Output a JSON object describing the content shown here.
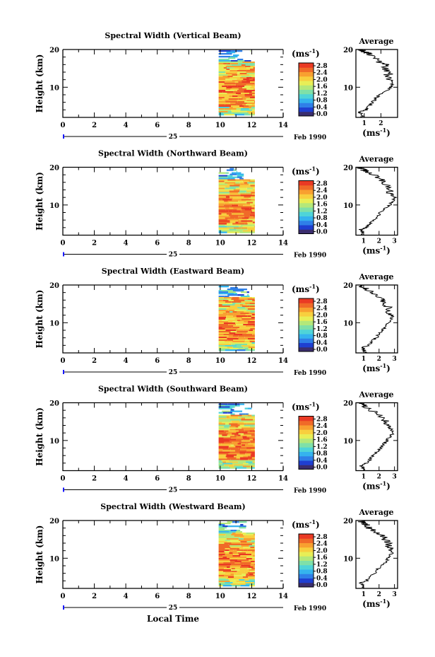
{
  "figure": {
    "xlabel": "Local Time",
    "date_day": "25",
    "date_month": "Feb 1990",
    "unit": "(ms",
    "unit_exp": "-1",
    "unit_close": ")",
    "avg_title": "Average",
    "ylabel": "Height (km)",
    "colors": {
      "scale": [
        "#3a2d6e",
        "#1f3fd1",
        "#2f7fe8",
        "#35b3ee",
        "#4fd4d8",
        "#7fe0a8",
        "#b4e87a",
        "#e8ee56",
        "#f8cf3e",
        "#f8a030",
        "#f06a28",
        "#ea3a24"
      ]
    }
  },
  "chart_data": [
    {
      "type": "heatmap",
      "title": "Spectral Width (Vertical Beam)",
      "xlim": [
        0,
        14
      ],
      "xticks": [
        "0",
        "2",
        "4",
        "6",
        "8",
        "10",
        "12",
        "14"
      ],
      "ylim": [
        2,
        20
      ],
      "yticks": [
        "10",
        "20"
      ],
      "data_x_range": [
        9.9,
        12.2
      ],
      "colorbar_ticks": [
        "0.0",
        "0.4",
        "0.8",
        "1.2",
        "1.6",
        "2.0",
        "2.4",
        "2.8"
      ],
      "average": {
        "xticks": [
          "1",
          "2"
        ],
        "xlim": [
          0.5,
          3.0
        ],
        "profile": [
          [
            2,
            0.9
          ],
          [
            3,
            0.8
          ],
          [
            3.5,
            0.7
          ],
          [
            4,
            1.1
          ],
          [
            5,
            1.3
          ],
          [
            6,
            1.5
          ],
          [
            7,
            1.7
          ],
          [
            8,
            1.9
          ],
          [
            9,
            2.3
          ],
          [
            10,
            2.6
          ],
          [
            11,
            2.7
          ],
          [
            12,
            2.6
          ],
          [
            13,
            2.4
          ],
          [
            14,
            2.5
          ],
          [
            15,
            2.2
          ],
          [
            16,
            2.3
          ],
          [
            17,
            1.8
          ],
          [
            18,
            1.6
          ],
          [
            19,
            1.3
          ],
          [
            19.5,
            1.0
          ],
          [
            20,
            0.8
          ]
        ]
      }
    },
    {
      "type": "heatmap",
      "title": "Spectral Width (Northward Beam)",
      "xlim": [
        0,
        14
      ],
      "xticks": [
        "0",
        "2",
        "4",
        "6",
        "8",
        "10",
        "12",
        "14"
      ],
      "ylim": [
        2,
        20
      ],
      "yticks": [
        "10",
        "20"
      ],
      "data_x_range": [
        9.9,
        12.2
      ],
      "colorbar_ticks": [
        "0.0",
        "0.4",
        "0.8",
        "1.2",
        "1.6",
        "2.0",
        "2.4",
        "2.8"
      ],
      "average": {
        "xticks": [
          "1",
          "2",
          "3"
        ],
        "xlim": [
          0.5,
          3.2
        ],
        "profile": [
          [
            2,
            1.0
          ],
          [
            3,
            0.9
          ],
          [
            3.5,
            0.8
          ],
          [
            4,
            1.2
          ],
          [
            5,
            1.4
          ],
          [
            6,
            1.7
          ],
          [
            7,
            1.9
          ],
          [
            8,
            2.1
          ],
          [
            9,
            2.4
          ],
          [
            10,
            2.7
          ],
          [
            11,
            2.9
          ],
          [
            12,
            3.0
          ],
          [
            13,
            2.6
          ],
          [
            14,
            2.8
          ],
          [
            15,
            2.5
          ],
          [
            16,
            2.4
          ],
          [
            17,
            2.0
          ],
          [
            18,
            1.6
          ],
          [
            19,
            1.2
          ],
          [
            19.5,
            0.9
          ],
          [
            20,
            0.7
          ]
        ]
      }
    },
    {
      "type": "heatmap",
      "title": "Spectral Width (Eastward Beam)",
      "xlim": [
        0,
        14
      ],
      "xticks": [
        "0",
        "2",
        "4",
        "6",
        "8",
        "10",
        "12",
        "14"
      ],
      "ylim": [
        2,
        20
      ],
      "yticks": [
        "10",
        "20"
      ],
      "data_x_range": [
        9.9,
        12.2
      ],
      "colorbar_ticks": [
        "0.0",
        "0.4",
        "0.8",
        "1.2",
        "1.6",
        "2.0",
        "2.4",
        "2.8"
      ],
      "average": {
        "xticks": [
          "1",
          "2",
          "3"
        ],
        "xlim": [
          0.5,
          3.2
        ],
        "profile": [
          [
            2,
            1.1
          ],
          [
            3,
            1.0
          ],
          [
            3.5,
            0.9
          ],
          [
            4,
            1.3
          ],
          [
            5,
            1.5
          ],
          [
            6,
            1.8
          ],
          [
            7,
            2.0
          ],
          [
            8,
            2.2
          ],
          [
            9,
            2.4
          ],
          [
            10,
            2.6
          ],
          [
            11,
            2.8
          ],
          [
            12,
            2.9
          ],
          [
            13,
            2.5
          ],
          [
            14,
            2.7
          ],
          [
            15,
            2.3
          ],
          [
            16,
            2.2
          ],
          [
            17,
            1.8
          ],
          [
            18,
            1.5
          ],
          [
            19,
            1.2
          ],
          [
            19.5,
            0.9
          ],
          [
            20,
            0.8
          ]
        ]
      }
    },
    {
      "type": "heatmap",
      "title": "Spectral Width (Southward Beam)",
      "xlim": [
        0,
        14
      ],
      "xticks": [
        "0",
        "2",
        "4",
        "6",
        "8",
        "10",
        "12",
        "14"
      ],
      "ylim": [
        2,
        20
      ],
      "yticks": [
        "10",
        "20"
      ],
      "data_x_range": [
        9.9,
        12.2
      ],
      "colorbar_ticks": [
        "0.0",
        "0.4",
        "0.8",
        "1.2",
        "1.6",
        "2.0",
        "2.4",
        "2.8"
      ],
      "average": {
        "xticks": [
          "1",
          "2",
          "3"
        ],
        "xlim": [
          0.5,
          3.2
        ],
        "profile": [
          [
            2,
            1.0
          ],
          [
            3,
            0.9
          ],
          [
            3.5,
            0.8
          ],
          [
            4,
            1.2
          ],
          [
            5,
            1.4
          ],
          [
            6,
            1.6
          ],
          [
            7,
            1.9
          ],
          [
            8,
            2.1
          ],
          [
            9,
            2.3
          ],
          [
            10,
            2.5
          ],
          [
            11,
            2.7
          ],
          [
            12,
            2.9
          ],
          [
            13,
            2.6
          ],
          [
            14,
            2.7
          ],
          [
            15,
            2.4
          ],
          [
            16,
            2.3
          ],
          [
            17,
            1.9
          ],
          [
            18,
            1.5
          ],
          [
            19,
            1.1
          ],
          [
            19.5,
            0.9
          ],
          [
            20,
            0.8
          ]
        ]
      }
    },
    {
      "type": "heatmap",
      "title": "Spectral Width (Westward Beam)",
      "xlim": [
        0,
        14
      ],
      "xticks": [
        "0",
        "2",
        "4",
        "6",
        "8",
        "10",
        "12",
        "14"
      ],
      "ylim": [
        2,
        20
      ],
      "yticks": [
        "10",
        "20"
      ],
      "data_x_range": [
        9.9,
        12.2
      ],
      "colorbar_ticks": [
        "0.0",
        "0.4",
        "0.8",
        "1.2",
        "1.6",
        "2.0",
        "2.4",
        "2.8"
      ],
      "average": {
        "xticks": [
          "1",
          "2",
          "3"
        ],
        "xlim": [
          0.5,
          3.2
        ],
        "profile": [
          [
            2,
            1.0
          ],
          [
            3,
            0.9
          ],
          [
            3.5,
            0.8
          ],
          [
            4,
            1.2
          ],
          [
            5,
            1.4
          ],
          [
            6,
            1.7
          ],
          [
            7,
            1.9
          ],
          [
            8,
            2.2
          ],
          [
            9,
            2.4
          ],
          [
            10,
            2.6
          ],
          [
            11,
            2.8
          ],
          [
            12,
            2.9
          ],
          [
            13,
            2.6
          ],
          [
            14,
            2.7
          ],
          [
            15,
            2.4
          ],
          [
            16,
            2.2
          ],
          [
            17,
            1.8
          ],
          [
            18,
            1.4
          ],
          [
            19,
            1.1
          ],
          [
            19.5,
            0.9
          ],
          [
            20,
            0.8
          ]
        ]
      }
    }
  ]
}
